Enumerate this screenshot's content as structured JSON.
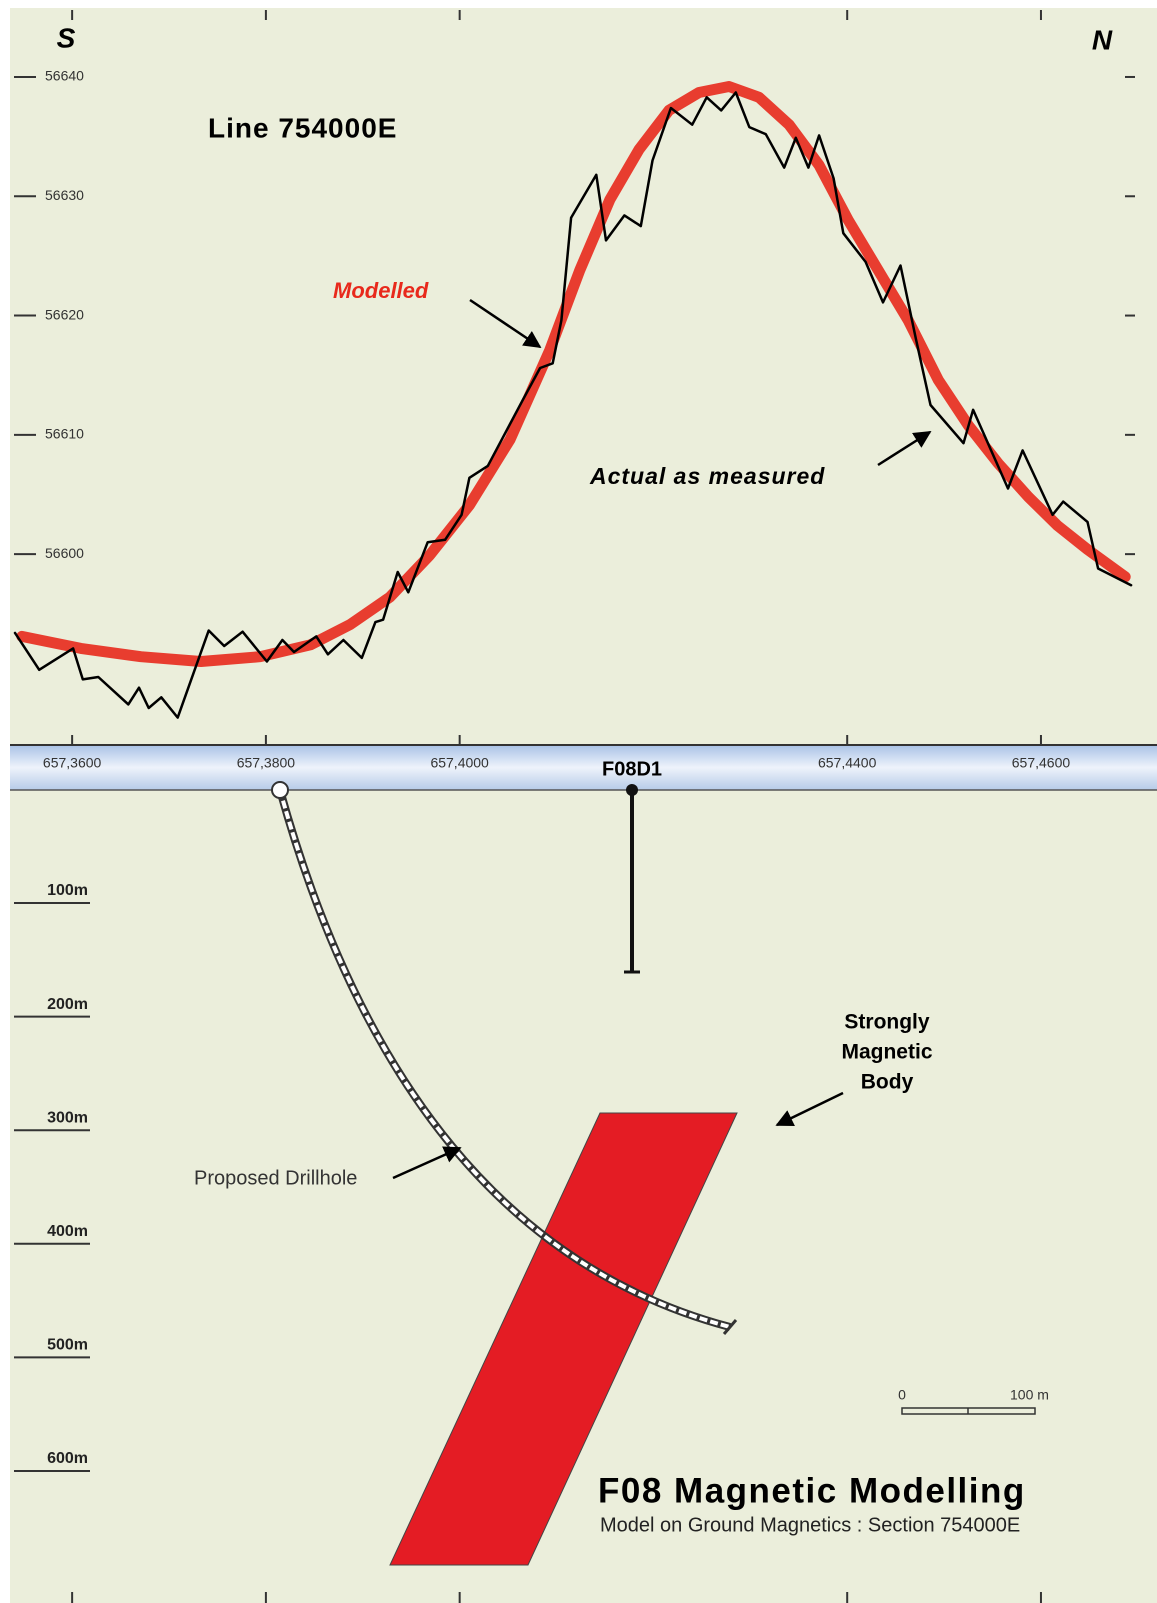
{
  "chart_data": {
    "type": "line",
    "title": "Line 754000E",
    "ends": [
      "S",
      "N"
    ],
    "xlim": [
      6573540,
      6574695
    ],
    "xticks": [
      {
        "value": 6573600,
        "label": "657,3600"
      },
      {
        "value": 6573800,
        "label": "657,3800"
      },
      {
        "value": 6574000,
        "label": "657,4000"
      },
      {
        "value": 6574400,
        "label": "657,4400"
      },
      {
        "value": 6574600,
        "label": "657,4600"
      }
    ],
    "ylim": [
      56584,
      56646
    ],
    "yticks": [
      56600,
      56610,
      56620,
      56630,
      56640
    ],
    "series": [
      {
        "name": "Modelled",
        "color": "#e8291c",
        "x": [
          6573548,
          6573609,
          6573671,
          6573733,
          6573794,
          6573846,
          6573887,
          6573928,
          6573969,
          6574010,
          6574052,
          6574093,
          6574124,
          6574155,
          6574185,
          6574216,
          6574247,
          6574278,
          6574309,
          6574340,
          6574371,
          6574401,
          6574432,
          6574463,
          6574494,
          6574525,
          6574556,
          6574587,
          6574617,
          6574648,
          6574687
        ],
        "values": [
          56593.1,
          56592.1,
          56591.4,
          56591.0,
          56591.4,
          56592.4,
          56594.1,
          56596.4,
          56599.9,
          56604.1,
          56609.6,
          56617.1,
          56623.8,
          56629.7,
          56633.9,
          56637.2,
          56638.7,
          56639.2,
          56638.3,
          56636.0,
          56632.6,
          56628.0,
          56623.8,
          56619.6,
          56614.6,
          56610.8,
          56607.6,
          56604.8,
          56602.4,
          56600.4,
          56598.1
        ]
      },
      {
        "name": "Actual as measured",
        "color": "#000000",
        "x": [
          6573541,
          6573566,
          6573601,
          6573611,
          6573627,
          6573658,
          6573669,
          6573679,
          6573692,
          6573709,
          6573741,
          6573757,
          6573776,
          6573801,
          6573817,
          6573829,
          6573852,
          6573864,
          6573880,
          6573899,
          6573913,
          6573921,
          6573936,
          6573947,
          6573967,
          6573985,
          6574002,
          6574010,
          6574029,
          6574065,
          6574083,
          6574096,
          6574105,
          6574115,
          6574141,
          6574151,
          6574170,
          6574187,
          6574199,
          6574218,
          6574240,
          6574255,
          6574270,
          6574285,
          6574299,
          6574316,
          6574335,
          6574347,
          6574360,
          6574371,
          6574386,
          6574396,
          6574419,
          6574437,
          6574455,
          6574471,
          6574486,
          6574520,
          6574530,
          6574566,
          6574581,
          6574612,
          6574623,
          6574648,
          6574659,
          6574693
        ],
        "values": [
          56593.4,
          56590.3,
          56592.1,
          56589.5,
          56589.7,
          56587.4,
          56588.8,
          56587.1,
          56588.0,
          56586.3,
          56593.6,
          56592.3,
          56593.5,
          56591.0,
          56592.8,
          56591.8,
          56593.1,
          56591.6,
          56592.8,
          56591.3,
          56594.3,
          56594.5,
          56598.5,
          56596.8,
          56601.0,
          56601.2,
          56603.3,
          56606.4,
          56607.4,
          56612.9,
          56615.6,
          56616.0,
          56619.6,
          56628.2,
          56631.8,
          56626.3,
          56628.4,
          56627.5,
          56633.0,
          56637.4,
          56636.0,
          56638.3,
          56637.2,
          56638.7,
          56635.8,
          56635.2,
          56632.4,
          56634.9,
          56632.4,
          56635.1,
          56631.5,
          56626.9,
          56624.5,
          56621.1,
          56624.2,
          56618.0,
          56612.5,
          56609.3,
          56612.1,
          56605.5,
          56608.7,
          56603.3,
          56604.4,
          56602.7,
          56598.8,
          56597.4
        ]
      }
    ]
  },
  "section": {
    "hole_name": "F08D1",
    "depth_labels": [
      "100m",
      "200m",
      "300m",
      "400m",
      "500m",
      "600m"
    ],
    "body_label": [
      "Strongly",
      "Magnetic",
      "Body"
    ],
    "drillhole_label": "Proposed Drillhole",
    "scale_bar": [
      "0",
      "100 m"
    ],
    "title": "F08 Magnetic Modelling",
    "subtitle": "Model on Ground Magnetics : Section 754000E"
  }
}
